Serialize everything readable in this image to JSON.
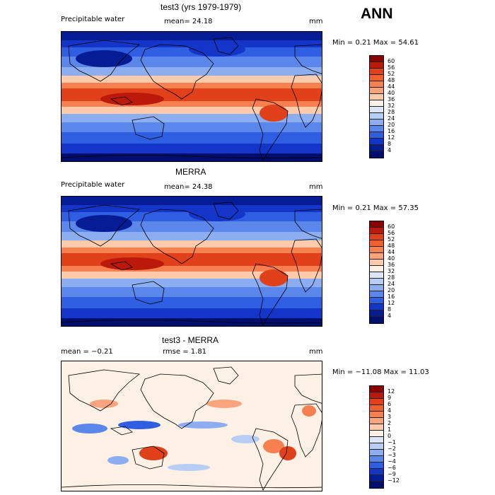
{
  "season": "ANN",
  "panels": [
    {
      "id": "test",
      "title": "test3 (yrs 1979-1979)",
      "variable": "Precipitable water",
      "stat": "mean=  24.18",
      "units": "mm",
      "range": "Min =    0.21  Max =   54.61",
      "colorbar": {
        "labels": [
          "60",
          "56",
          "52",
          "48",
          "44",
          "40",
          "36",
          "32",
          "28",
          "24",
          "20",
          "16",
          "12",
          "8",
          "4"
        ],
        "colors": [
          "#8b0000",
          "#bb1a0a",
          "#e0401a",
          "#f0602e",
          "#f68050",
          "#f9a47c",
          "#fccbac",
          "#fdf0e4",
          "#dde6f6",
          "#b7cdf4",
          "#8caef0",
          "#5b86ea",
          "#2f5ee2",
          "#1336c9",
          "#061c94",
          "#000f6e"
        ]
      },
      "field": "precip"
    },
    {
      "id": "obs",
      "title": "MERRA",
      "variable": "Precipitable water",
      "stat": "mean=  24.38",
      "units": "mm",
      "range": "Min =    0.21  Max =   57.35",
      "colorbar": {
        "labels": [
          "60",
          "56",
          "52",
          "48",
          "44",
          "40",
          "36",
          "32",
          "28",
          "24",
          "20",
          "16",
          "12",
          "8",
          "4"
        ],
        "colors": [
          "#8b0000",
          "#bb1a0a",
          "#e0401a",
          "#f0602e",
          "#f68050",
          "#f9a47c",
          "#fccbac",
          "#fdf0e4",
          "#dde6f6",
          "#b7cdf4",
          "#8caef0",
          "#5b86ea",
          "#2f5ee2",
          "#1336c9",
          "#061c94",
          "#000f6e"
        ]
      },
      "field": "precip"
    },
    {
      "id": "diff",
      "title": "test3 - MERRA",
      "variable": "mean =   −0.21",
      "stat": "rmse =    1.81",
      "units": "mm",
      "range": "Min = −11.08  Max =   11.03",
      "colorbar": {
        "labels": [
          "12",
          "9",
          "6",
          "4",
          "3",
          "2",
          "1",
          "0",
          "−1",
          "−2",
          "−3",
          "−4",
          "−6",
          "−9",
          "−12"
        ],
        "colors": [
          "#8b0000",
          "#bb1a0a",
          "#e0401a",
          "#f0602e",
          "#f68050",
          "#f9a47c",
          "#fccbac",
          "#fdf0e4",
          "#dde6f6",
          "#b7cdf4",
          "#8caef0",
          "#5b86ea",
          "#2f5ee2",
          "#1336c9",
          "#061c94",
          "#000f6e"
        ]
      },
      "field": "diff"
    }
  ]
}
